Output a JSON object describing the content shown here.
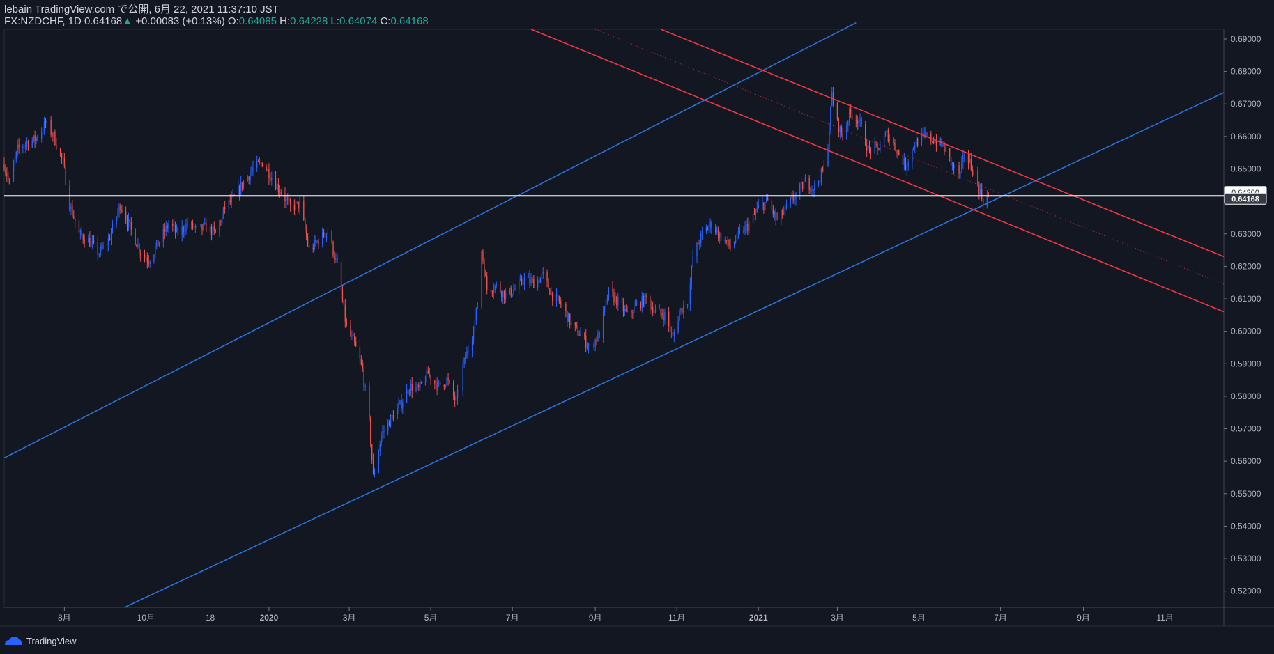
{
  "header": {
    "line1": "lebain TradingView.com で公開, 6月 22, 2021 11:37:10 JST",
    "symbol": "FX:NZDCHF, 1D",
    "last": "0.64168",
    "change": "+0.00083 (+0.13%)",
    "o_label": "O:",
    "o": "0.64085",
    "h_label": "H:",
    "h": "0.64228",
    "l_label": "L:",
    "l": "0.64074",
    "c_label": "C:",
    "c": "0.64168"
  },
  "footer": {
    "brand": "TradingView"
  },
  "colors": {
    "background": "#131722",
    "up": "#2962ff",
    "down": "#ef5350",
    "trend_blue": "#2a72d8",
    "trend_red": "#f23645",
    "axis_text": "#b2b5be",
    "price_line": "#ffffff"
  },
  "chart_data": {
    "type": "candlestick",
    "interval": "1D",
    "symbol": "FX:NZDCHF",
    "ylim": [
      0.515,
      0.693
    ],
    "y_ticks": [
      "0.69000",
      "0.68000",
      "0.67000",
      "0.66000",
      "0.65000",
      "0.64000",
      "0.63000",
      "0.62000",
      "0.61000",
      "0.60000",
      "0.59000",
      "0.58000",
      "0.57000",
      "0.56000",
      "0.55000",
      "0.54000",
      "0.53000",
      "0.52000"
    ],
    "x_ticks": [
      {
        "label": "8月",
        "t": "2019-08-01"
      },
      {
        "label": "10月",
        "t": "2019-10-01"
      },
      {
        "label": "18",
        "t": "2019-11-18"
      },
      {
        "label": "2020",
        "t": "2020-01-01"
      },
      {
        "label": "3月",
        "t": "2020-03-01"
      },
      {
        "label": "5月",
        "t": "2020-05-01"
      },
      {
        "label": "7月",
        "t": "2020-07-01"
      },
      {
        "label": "9月",
        "t": "2020-09-01"
      },
      {
        "label": "11月",
        "t": "2020-11-01"
      },
      {
        "label": "2021",
        "t": "2021-01-01"
      },
      {
        "label": "3月",
        "t": "2021-03-01"
      },
      {
        "label": "5月",
        "t": "2021-05-01"
      },
      {
        "label": "7月",
        "t": "2021-07-01"
      },
      {
        "label": "9月",
        "t": "2021-09-01"
      },
      {
        "label": "11月",
        "t": "2021-11-01"
      }
    ],
    "close_anchors": [
      [
        "2019-06-17",
        0.6515
      ],
      [
        "2019-06-21",
        0.645
      ],
      [
        "2019-06-27",
        0.656
      ],
      [
        "2019-07-03",
        0.658
      ],
      [
        "2019-07-10",
        0.659
      ],
      [
        "2019-07-18",
        0.664
      ],
      [
        "2019-07-24",
        0.66
      ],
      [
        "2019-07-31",
        0.652
      ],
      [
        "2019-08-05",
        0.639
      ],
      [
        "2019-08-12",
        0.63
      ],
      [
        "2019-08-19",
        0.628
      ],
      [
        "2019-08-27",
        0.624
      ],
      [
        "2019-09-03",
        0.628
      ],
      [
        "2019-09-12",
        0.639
      ],
      [
        "2019-09-20",
        0.631
      ],
      [
        "2019-09-27",
        0.6245
      ],
      [
        "2019-10-03",
        0.622
      ],
      [
        "2019-10-10",
        0.627
      ],
      [
        "2019-10-18",
        0.633
      ],
      [
        "2019-10-25",
        0.63
      ],
      [
        "2019-11-01",
        0.633
      ],
      [
        "2019-11-08",
        0.631
      ],
      [
        "2019-11-15",
        0.632
      ],
      [
        "2019-11-22",
        0.63
      ],
      [
        "2019-11-29",
        0.638
      ],
      [
        "2019-12-06",
        0.641
      ],
      [
        "2019-12-13",
        0.646
      ],
      [
        "2019-12-20",
        0.65
      ],
      [
        "2019-12-27",
        0.652
      ],
      [
        "2020-01-03",
        0.6475
      ],
      [
        "2020-01-10",
        0.643
      ],
      [
        "2020-01-17",
        0.638
      ],
      [
        "2020-01-24",
        0.639
      ],
      [
        "2020-01-31",
        0.625
      ],
      [
        "2020-02-07",
        0.628
      ],
      [
        "2020-02-14",
        0.631
      ],
      [
        "2020-02-21",
        0.62
      ],
      [
        "2020-02-28",
        0.601
      ],
      [
        "2020-03-05",
        0.596
      ],
      [
        "2020-03-11",
        0.588
      ],
      [
        "2020-03-16",
        0.572
      ],
      [
        "2020-03-19",
        0.555
      ],
      [
        "2020-03-25",
        0.568
      ],
      [
        "2020-04-01",
        0.573
      ],
      [
        "2020-04-08",
        0.577
      ],
      [
        "2020-04-15",
        0.583
      ],
      [
        "2020-04-22",
        0.582
      ],
      [
        "2020-04-29",
        0.587
      ],
      [
        "2020-05-06",
        0.583
      ],
      [
        "2020-05-13",
        0.585
      ],
      [
        "2020-05-20",
        0.578
      ],
      [
        "2020-05-25",
        0.589
      ],
      [
        "2020-06-01",
        0.599
      ],
      [
        "2020-06-05",
        0.608
      ],
      [
        "2020-06-08",
        0.625
      ],
      [
        "2020-06-12",
        0.613
      ],
      [
        "2020-06-19",
        0.614
      ],
      [
        "2020-06-26",
        0.611
      ],
      [
        "2020-07-03",
        0.613
      ],
      [
        "2020-07-10",
        0.616
      ],
      [
        "2020-07-17",
        0.615
      ],
      [
        "2020-07-24",
        0.617
      ],
      [
        "2020-07-31",
        0.611
      ],
      [
        "2020-08-07",
        0.608
      ],
      [
        "2020-08-14",
        0.602
      ],
      [
        "2020-08-21",
        0.599
      ],
      [
        "2020-08-28",
        0.595
      ],
      [
        "2020-09-04",
        0.599
      ],
      [
        "2020-09-11",
        0.612
      ],
      [
        "2020-09-18",
        0.609
      ],
      [
        "2020-09-25",
        0.605
      ],
      [
        "2020-10-02",
        0.608
      ],
      [
        "2020-10-09",
        0.61
      ],
      [
        "2020-10-16",
        0.606
      ],
      [
        "2020-10-23",
        0.605
      ],
      [
        "2020-10-29",
        0.598
      ],
      [
        "2020-11-03",
        0.606
      ],
      [
        "2020-11-10",
        0.61
      ],
      [
        "2020-11-13",
        0.623
      ],
      [
        "2020-11-20",
        0.63
      ],
      [
        "2020-11-27",
        0.633
      ],
      [
        "2020-12-04",
        0.629
      ],
      [
        "2020-12-11",
        0.626
      ],
      [
        "2020-12-18",
        0.63
      ],
      [
        "2020-12-25",
        0.633
      ],
      [
        "2021-01-01",
        0.638
      ],
      [
        "2021-01-08",
        0.64
      ],
      [
        "2021-01-15",
        0.634
      ],
      [
        "2021-01-22",
        0.638
      ],
      [
        "2021-01-29",
        0.642
      ],
      [
        "2021-02-05",
        0.646
      ],
      [
        "2021-02-12",
        0.644
      ],
      [
        "2021-02-19",
        0.65
      ],
      [
        "2021-02-22",
        0.658
      ],
      [
        "2021-02-25",
        0.673
      ],
      [
        "2021-03-01",
        0.664
      ],
      [
        "2021-03-05",
        0.66
      ],
      [
        "2021-03-10",
        0.667
      ],
      [
        "2021-03-17",
        0.665
      ],
      [
        "2021-03-24",
        0.656
      ],
      [
        "2021-03-31",
        0.656
      ],
      [
        "2021-04-07",
        0.661
      ],
      [
        "2021-04-14",
        0.656
      ],
      [
        "2021-04-21",
        0.651
      ],
      [
        "2021-04-28",
        0.658
      ],
      [
        "2021-05-05",
        0.66
      ],
      [
        "2021-05-12",
        0.659
      ],
      [
        "2021-05-19",
        0.657
      ],
      [
        "2021-05-26",
        0.651
      ],
      [
        "2021-06-01",
        0.648
      ],
      [
        "2021-06-04",
        0.655
      ],
      [
        "2021-06-09",
        0.651
      ],
      [
        "2021-06-15",
        0.644
      ],
      [
        "2021-06-18",
        0.64
      ],
      [
        "2021-06-22",
        0.64168
      ]
    ],
    "trendlines": [
      {
        "color": "blue",
        "from": [
          "2019-06-17",
          0.561
        ],
        "to": [
          "2021-03-15",
          0.695
        ]
      },
      {
        "color": "blue",
        "from": [
          "2019-09-15",
          0.515
        ],
        "to": [
          "2021-12-15",
          0.6735
        ]
      },
      {
        "color": "red",
        "from": [
          "2020-07-15",
          0.693
        ],
        "to": [
          "2021-12-15",
          0.606
        ]
      },
      {
        "color": "red",
        "from": [
          "2020-10-20",
          0.693
        ],
        "to": [
          "2021-12-15",
          0.623
        ]
      },
      {
        "color": "red-dotted",
        "from": [
          "2020-09-01",
          0.693
        ],
        "to": [
          "2021-12-15",
          0.6145
        ]
      }
    ],
    "horizontal_line": 0.64168,
    "price_labels": [
      {
        "value": 0.642,
        "text": "0.64200",
        "style": "outline"
      },
      {
        "value": 0.64168,
        "text": "0.64168",
        "style": "filled"
      }
    ]
  }
}
